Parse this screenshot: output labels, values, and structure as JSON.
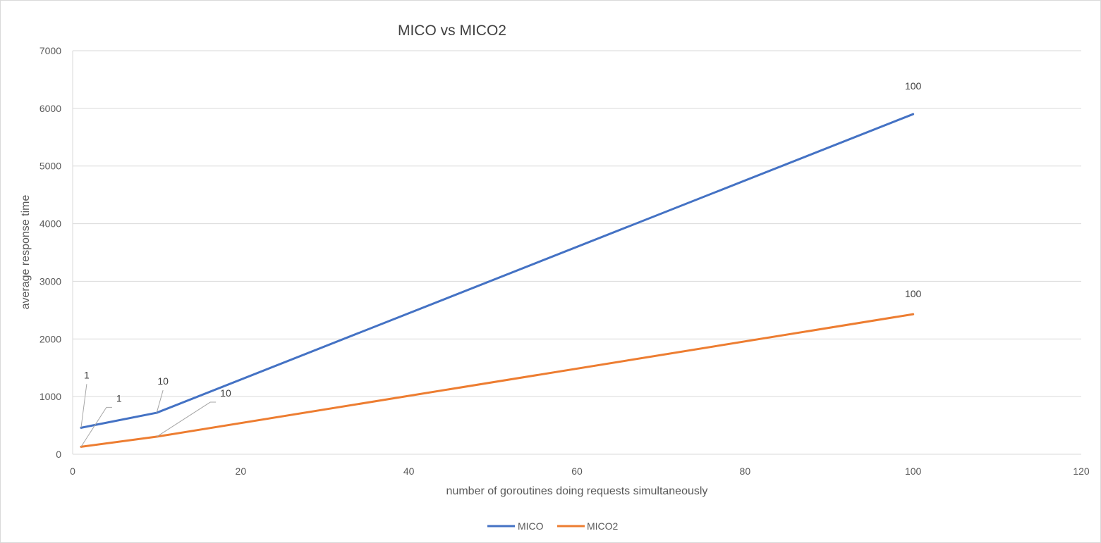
{
  "chart_data": {
    "type": "line",
    "title": "MICO vs MICO2",
    "xlabel": "number of goroutines doing requests simultaneously",
    "ylabel": "average response time",
    "xlim": [
      0,
      120
    ],
    "ylim": [
      0,
      7000
    ],
    "x_ticks": [
      0,
      20,
      40,
      60,
      80,
      100,
      120
    ],
    "y_ticks": [
      0,
      1000,
      2000,
      3000,
      4000,
      5000,
      6000,
      7000
    ],
    "grid": true,
    "legend_position": "bottom",
    "series": [
      {
        "name": "MICO",
        "color": "#4472c4",
        "x": [
          1,
          10,
          100
        ],
        "y": [
          460,
          720,
          5900
        ],
        "labels": [
          "1",
          "10",
          "100"
        ]
      },
      {
        "name": "MICO2",
        "color": "#ed7d31",
        "x": [
          1,
          10,
          100
        ],
        "y": [
          130,
          305,
          2430
        ],
        "labels": [
          "1",
          "10",
          "100"
        ]
      }
    ]
  }
}
